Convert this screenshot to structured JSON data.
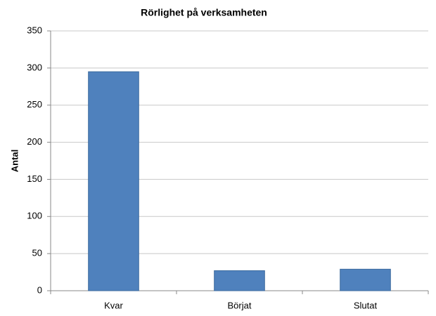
{
  "chart_data": {
    "type": "bar",
    "title": "Rörlighet på verksamheten",
    "y_label": "Antal",
    "categories": [
      "Kvar",
      "Börjat",
      "Slutat"
    ],
    "values": [
      295,
      27,
      29
    ],
    "color": "#4f81bd",
    "ylim": [
      0,
      350
    ],
    "yticks": [
      0,
      50,
      100,
      150,
      200,
      250,
      300,
      350
    ],
    "grid": true
  }
}
